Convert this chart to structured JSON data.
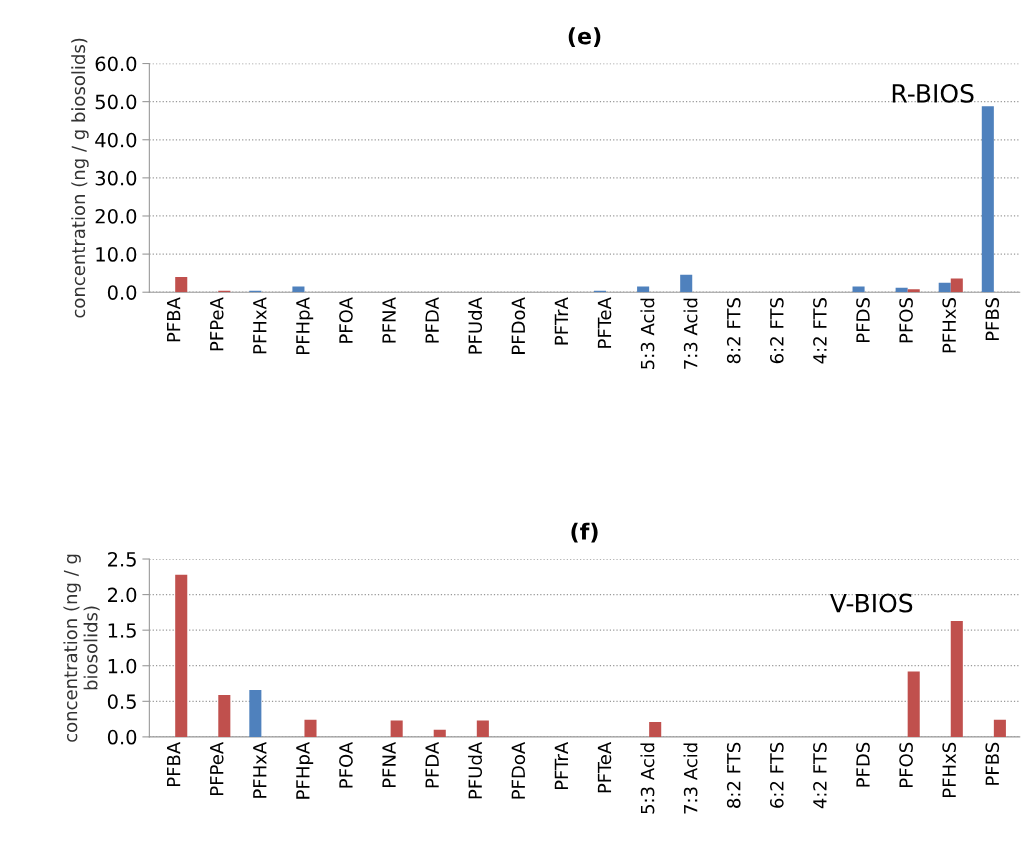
{
  "chart_data": [
    {
      "type": "bar",
      "title": "(e)",
      "ylabel": "concentration (ng / g biosolids)",
      "categories": [
        "PFBA",
        "PFPeA",
        "PFHxA",
        "PFHpA",
        "PFOA",
        "PFNA",
        "PFDA",
        "PFUdA",
        "PFDoA",
        "PFTrA",
        "PFTeA",
        "5:3 Acid",
        "7:3 Acid",
        "8:2 FTS",
        "6:2 FTS",
        "4:2 FTS",
        "PFDS",
        "PFOS",
        "PFHxS",
        "PFBS"
      ],
      "series": [
        {
          "color": "#4f81bd",
          "values": [
            null,
            null,
            0.4,
            1.5,
            null,
            null,
            null,
            null,
            null,
            null,
            0.4,
            1.5,
            4.6,
            null,
            null,
            null,
            1.5,
            1.2,
            2.5,
            48.8
          ]
        },
        {
          "color": "#c0504d",
          "values": [
            4.0,
            0.4,
            null,
            null,
            null,
            null,
            null,
            null,
            null,
            null,
            null,
            null,
            null,
            null,
            null,
            null,
            null,
            0.8,
            3.6,
            null
          ]
        }
      ],
      "ylim": [
        0,
        60
      ],
      "yticks": [
        {
          "value": 0,
          "label": "0.0"
        },
        {
          "value": 10,
          "label": "10.0"
        },
        {
          "value": 20,
          "label": "20.0"
        },
        {
          "value": 30,
          "label": "30.0"
        },
        {
          "value": 40,
          "label": "40.0"
        },
        {
          "value": 50,
          "label": "50.0"
        },
        {
          "value": 60,
          "label": "60.0"
        }
      ],
      "grid": "y",
      "annotations": [
        "R-BIOS"
      ]
    },
    {
      "type": "bar",
      "title": "(f)",
      "ylabel": "concentration (ng / g\nbiosolids)",
      "categories": [
        "PFBA",
        "PFPeA",
        "PFHxA",
        "PFHpA",
        "PFOA",
        "PFNA",
        "PFDA",
        "PFUdA",
        "PFDoA",
        "PFTrA",
        "PFTeA",
        "5:3 Acid",
        "7:3 Acid",
        "8:2 FTS",
        "6:2 FTS",
        "4:2 FTS",
        "PFDS",
        "PFOS",
        "PFHxS",
        "PFBS"
      ],
      "series": [
        {
          "color": "#4f81bd",
          "values": [
            null,
            null,
            0.66,
            null,
            null,
            null,
            null,
            null,
            null,
            null,
            null,
            null,
            null,
            null,
            null,
            null,
            null,
            null,
            null,
            null
          ]
        },
        {
          "color": "#c0504d",
          "values": [
            2.28,
            0.59,
            null,
            0.24,
            null,
            0.23,
            0.1,
            0.23,
            null,
            null,
            null,
            0.21,
            null,
            null,
            null,
            null,
            null,
            0.92,
            1.63,
            0.24
          ]
        }
      ],
      "ylim": [
        0,
        2.5
      ],
      "yticks": [
        {
          "value": 0,
          "label": "0.0"
        },
        {
          "value": 0.5,
          "label": "0.5"
        },
        {
          "value": 1.0,
          "label": "1.0"
        },
        {
          "value": 1.5,
          "label": "1.5"
        },
        {
          "value": 2.0,
          "label": "2.0"
        },
        {
          "value": 2.5,
          "label": "2.5"
        }
      ],
      "grid": "y",
      "annotations": [
        "V-BIOS"
      ]
    }
  ]
}
